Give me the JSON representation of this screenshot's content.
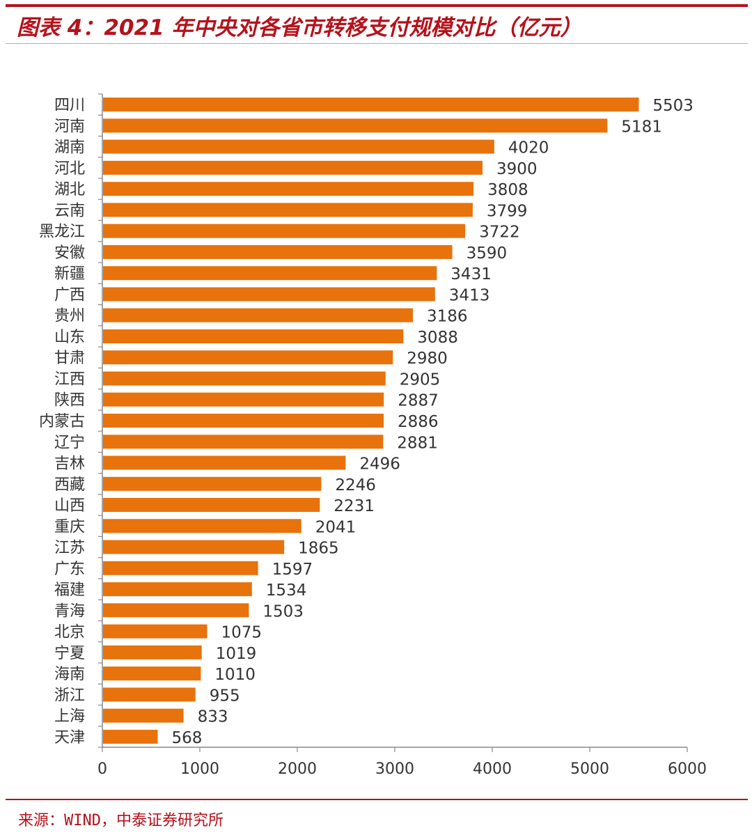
{
  "header": {
    "title": "图表 4：2021 年中央对各省市转移支付规模对比（亿元）"
  },
  "footer": {
    "source": "来源：WIND，中泰证券研究所"
  },
  "colors": {
    "bar": "#e8720c",
    "accent": "#b5121b",
    "axis": "#888888",
    "text": "#333333"
  },
  "chart_data": {
    "type": "bar",
    "orientation": "horizontal",
    "categories": [
      "四川",
      "河南",
      "湖南",
      "河北",
      "湖北",
      "云南",
      "黑龙江",
      "安徽",
      "新疆",
      "广西",
      "贵州",
      "山东",
      "甘肃",
      "江西",
      "陕西",
      "内蒙古",
      "辽宁",
      "吉林",
      "西藏",
      "山西",
      "重庆",
      "江苏",
      "广东",
      "福建",
      "青海",
      "北京",
      "宁夏",
      "海南",
      "浙江",
      "上海",
      "天津"
    ],
    "values": [
      5503,
      5181,
      4020,
      3900,
      3808,
      3799,
      3722,
      3590,
      3431,
      3413,
      3186,
      3088,
      2980,
      2905,
      2887,
      2886,
      2881,
      2496,
      2246,
      2231,
      2041,
      1865,
      1597,
      1534,
      1503,
      1075,
      1019,
      1010,
      955,
      833,
      568
    ],
    "xlim": [
      0,
      6000
    ],
    "xticks": [
      0,
      1000,
      2000,
      3000,
      4000,
      5000,
      6000
    ],
    "grid": false,
    "data_labels": true
  }
}
